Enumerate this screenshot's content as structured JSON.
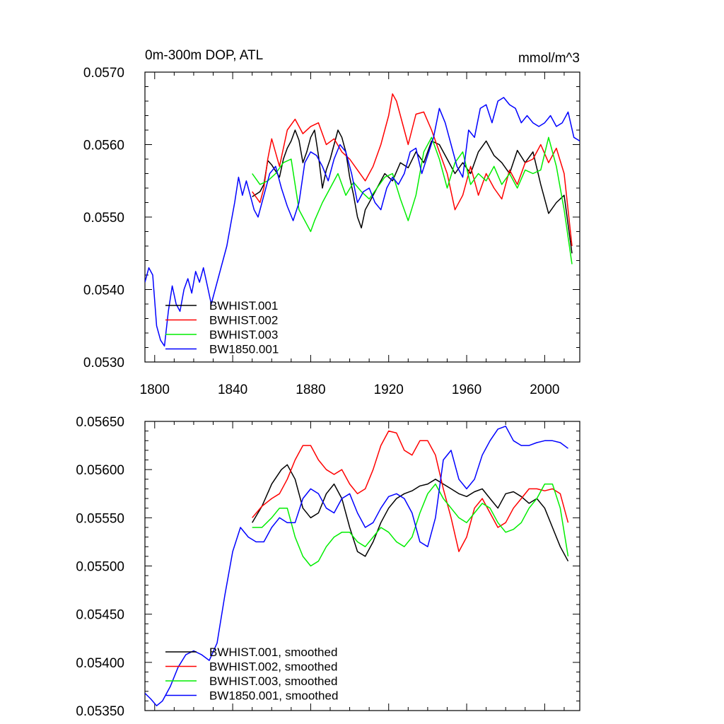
{
  "figure": {
    "title_left": "0m-300m DOP, ATL",
    "title_right": "mmol/m^3"
  },
  "chart_data": [
    {
      "type": "line",
      "title": "0m-300m DOP, ATL",
      "units": "mmol/m^3",
      "xlabel": "",
      "ylabel": "",
      "xlim": [
        1795,
        2018
      ],
      "ylim": [
        0.053,
        0.057
      ],
      "xticks": [
        1800,
        1840,
        1880,
        1920,
        1960,
        2000
      ],
      "xtick_labels": [
        "1800",
        "1840",
        "1880",
        "1920",
        "1960",
        "2000"
      ],
      "yticks": [
        0.053,
        0.054,
        0.055,
        0.056,
        0.057
      ],
      "ytick_labels": [
        "0.0530",
        "0.0540",
        "0.0550",
        "0.0560",
        "0.0570"
      ],
      "legend_position": "bottom-left",
      "series": [
        {
          "name": "BWHIST.001",
          "color": "#000000",
          "x": [
            1850,
            1854,
            1856,
            1858,
            1860,
            1864,
            1866,
            1868,
            1870,
            1872,
            1874,
            1876,
            1878,
            1880,
            1882,
            1884,
            1886,
            1888,
            1890,
            1892,
            1894,
            1896,
            1898,
            1900,
            1902,
            1904,
            1906,
            1908,
            1910,
            1914,
            1918,
            1922,
            1926,
            1930,
            1934,
            1938,
            1942,
            1946,
            1950,
            1954,
            1958,
            1962,
            1966,
            1970,
            1974,
            1978,
            1982,
            1986,
            1990,
            1994,
            1998,
            2002,
            2006,
            2010,
            2014
          ],
          "y": [
            0.05528,
            0.05535,
            0.05545,
            0.05578,
            0.05572,
            0.05555,
            0.0558,
            0.05595,
            0.05605,
            0.0562,
            0.05606,
            0.05575,
            0.0559,
            0.0561,
            0.0562,
            0.05585,
            0.0554,
            0.05565,
            0.0558,
            0.056,
            0.0562,
            0.0561,
            0.0559,
            0.05555,
            0.0553,
            0.055,
            0.05485,
            0.0551,
            0.0552,
            0.0554,
            0.0556,
            0.0555,
            0.05575,
            0.05568,
            0.0559,
            0.05575,
            0.05605,
            0.056,
            0.0558,
            0.0556,
            0.05575,
            0.0556,
            0.0559,
            0.05605,
            0.05585,
            0.05575,
            0.0556,
            0.05592,
            0.05575,
            0.0559,
            0.05545,
            0.05505,
            0.0552,
            0.0553,
            0.0545
          ]
        },
        {
          "name": "BWHIST.002",
          "color": "#ff0000",
          "x": [
            1850,
            1854,
            1856,
            1858,
            1860,
            1864,
            1868,
            1872,
            1876,
            1880,
            1884,
            1888,
            1892,
            1896,
            1900,
            1904,
            1908,
            1912,
            1916,
            1920,
            1922,
            1924,
            1926,
            1930,
            1934,
            1938,
            1942,
            1946,
            1950,
            1954,
            1958,
            1962,
            1966,
            1970,
            1974,
            1978,
            1982,
            1986,
            1990,
            1994,
            1998,
            2002,
            2006,
            2010,
            2014
          ],
          "y": [
            0.05535,
            0.0552,
            0.0554,
            0.0558,
            0.05608,
            0.0557,
            0.0562,
            0.05635,
            0.05615,
            0.05625,
            0.0563,
            0.056,
            0.05608,
            0.0559,
            0.0558,
            0.05565,
            0.0555,
            0.0557,
            0.056,
            0.0564,
            0.0567,
            0.0566,
            0.0564,
            0.056,
            0.05642,
            0.05645,
            0.0562,
            0.0559,
            0.0556,
            0.0551,
            0.0553,
            0.0557,
            0.0553,
            0.0556,
            0.0554,
            0.05525,
            0.05565,
            0.05545,
            0.05575,
            0.0558,
            0.056,
            0.05575,
            0.05595,
            0.0556,
            0.0546
          ]
        },
        {
          "name": "BWHIST.003",
          "color": "#00ee00",
          "x": [
            1850,
            1854,
            1858,
            1862,
            1866,
            1870,
            1874,
            1876,
            1878,
            1880,
            1882,
            1886,
            1890,
            1894,
            1898,
            1902,
            1906,
            1910,
            1914,
            1918,
            1922,
            1926,
            1930,
            1934,
            1938,
            1942,
            1946,
            1950,
            1954,
            1958,
            1962,
            1966,
            1970,
            1974,
            1978,
            1982,
            1986,
            1990,
            1994,
            1998,
            2002,
            2006,
            2010,
            2014
          ],
          "y": [
            0.0556,
            0.05545,
            0.0555,
            0.0556,
            0.05575,
            0.0558,
            0.0551,
            0.055,
            0.0549,
            0.0548,
            0.05495,
            0.0552,
            0.0554,
            0.0556,
            0.0553,
            0.05548,
            0.05535,
            0.05525,
            0.0554,
            0.05555,
            0.0556,
            0.05525,
            0.05495,
            0.0553,
            0.0559,
            0.0561,
            0.0558,
            0.0554,
            0.05575,
            0.0559,
            0.05545,
            0.0556,
            0.0555,
            0.0557,
            0.05545,
            0.0556,
            0.0554,
            0.05565,
            0.0556,
            0.05565,
            0.0561,
            0.0557,
            0.0551,
            0.05435
          ]
        },
        {
          "name": "BW1850.001",
          "color": "#0000ff",
          "x": [
            1795,
            1797,
            1799,
            1801,
            1803,
            1805,
            1807,
            1809,
            1811,
            1813,
            1815,
            1817,
            1819,
            1821,
            1823,
            1825,
            1827,
            1829,
            1831,
            1833,
            1835,
            1837,
            1839,
            1841,
            1843,
            1845,
            1847,
            1849,
            1851,
            1853,
            1855,
            1857,
            1859,
            1862,
            1865,
            1868,
            1871,
            1874,
            1877,
            1880,
            1883,
            1886,
            1889,
            1892,
            1895,
            1898,
            1901,
            1904,
            1907,
            1910,
            1913,
            1916,
            1919,
            1922,
            1925,
            1928,
            1931,
            1934,
            1937,
            1940,
            1943,
            1946,
            1949,
            1952,
            1955,
            1958,
            1961,
            1964,
            1967,
            1970,
            1973,
            1976,
            1979,
            1982,
            1985,
            1988,
            1991,
            1994,
            1997,
            2000,
            2003,
            2006,
            2009,
            2012,
            2015,
            2018
          ],
          "y": [
            0.0541,
            0.0543,
            0.0542,
            0.0535,
            0.0533,
            0.05322,
            0.0537,
            0.05405,
            0.0538,
            0.0537,
            0.054,
            0.05415,
            0.05395,
            0.05425,
            0.0541,
            0.0543,
            0.05405,
            0.0538,
            0.054,
            0.0542,
            0.0544,
            0.0546,
            0.0549,
            0.0552,
            0.05555,
            0.0553,
            0.0555,
            0.0553,
            0.0551,
            0.055,
            0.0552,
            0.0554,
            0.0556,
            0.0557,
            0.0554,
            0.05515,
            0.05495,
            0.0552,
            0.05575,
            0.0559,
            0.05585,
            0.0557,
            0.0555,
            0.0558,
            0.056,
            0.0559,
            0.0556,
            0.0552,
            0.05535,
            0.0554,
            0.0552,
            0.0551,
            0.0554,
            0.05555,
            0.05545,
            0.0556,
            0.0559,
            0.05595,
            0.0556,
            0.05585,
            0.0561,
            0.0565,
            0.0563,
            0.056,
            0.0557,
            0.05555,
            0.0562,
            0.0561,
            0.0565,
            0.05655,
            0.0563,
            0.0566,
            0.05665,
            0.05655,
            0.0565,
            0.0563,
            0.0564,
            0.0563,
            0.05625,
            0.0563,
            0.0564,
            0.05625,
            0.0563,
            0.05645,
            0.0561,
            0.05605
          ]
        }
      ]
    },
    {
      "type": "line",
      "title": "",
      "xlabel": "",
      "ylabel": "",
      "xlim": [
        1795,
        2018
      ],
      "ylim": [
        0.0535,
        0.0565
      ],
      "xticks": [
        1800,
        1840,
        1880,
        1920,
        1960,
        2000
      ],
      "yticks": [
        0.0535,
        0.054,
        0.0545,
        0.055,
        0.0555,
        0.056,
        0.0565
      ],
      "ytick_labels": [
        "0.05350",
        "0.05400",
        "0.05450",
        "0.05500",
        "0.05550",
        "0.05600",
        "0.05650"
      ],
      "legend_position": "bottom-left",
      "series": [
        {
          "name": "BWHIST.001, smoothed",
          "color": "#000000",
          "x": [
            1850,
            1855,
            1860,
            1865,
            1868,
            1872,
            1876,
            1880,
            1884,
            1888,
            1892,
            1896,
            1900,
            1904,
            1908,
            1912,
            1916,
            1920,
            1924,
            1928,
            1932,
            1936,
            1940,
            1944,
            1948,
            1952,
            1956,
            1960,
            1964,
            1968,
            1972,
            1976,
            1980,
            1984,
            1988,
            1992,
            1996,
            2000,
            2004,
            2008,
            2012
          ],
          "y": [
            0.05545,
            0.05562,
            0.05585,
            0.056,
            0.05605,
            0.0559,
            0.0556,
            0.0555,
            0.05555,
            0.05575,
            0.05585,
            0.0557,
            0.0554,
            0.05515,
            0.0551,
            0.05525,
            0.05545,
            0.0556,
            0.0557,
            0.05575,
            0.05578,
            0.05583,
            0.05585,
            0.0559,
            0.05585,
            0.0558,
            0.05575,
            0.05572,
            0.05577,
            0.0558,
            0.0557,
            0.0556,
            0.05575,
            0.05577,
            0.05572,
            0.05565,
            0.0557,
            0.0556,
            0.0554,
            0.0552,
            0.05505
          ]
        },
        {
          "name": "BWHIST.002, smoothed",
          "color": "#ff0000",
          "x": [
            1850,
            1855,
            1860,
            1864,
            1868,
            1872,
            1876,
            1880,
            1884,
            1888,
            1892,
            1896,
            1900,
            1904,
            1908,
            1912,
            1916,
            1920,
            1924,
            1928,
            1932,
            1936,
            1940,
            1944,
            1948,
            1952,
            1956,
            1960,
            1964,
            1968,
            1972,
            1976,
            1980,
            1984,
            1988,
            1992,
            1996,
            2000,
            2004,
            2008,
            2012
          ],
          "y": [
            0.0555,
            0.05562,
            0.0557,
            0.05575,
            0.0559,
            0.0561,
            0.05625,
            0.05625,
            0.0561,
            0.056,
            0.05595,
            0.056,
            0.05585,
            0.05575,
            0.0558,
            0.056,
            0.05625,
            0.0564,
            0.05638,
            0.0562,
            0.05615,
            0.0563,
            0.0563,
            0.05615,
            0.0558,
            0.0555,
            0.05515,
            0.0553,
            0.0556,
            0.0557,
            0.05555,
            0.0554,
            0.05545,
            0.0556,
            0.0557,
            0.0558,
            0.0558,
            0.05578,
            0.0558,
            0.05575,
            0.05545
          ]
        },
        {
          "name": "BWHIST.003, smoothed",
          "color": "#00ee00",
          "x": [
            1850,
            1855,
            1860,
            1864,
            1868,
            1872,
            1876,
            1880,
            1884,
            1888,
            1892,
            1896,
            1900,
            1904,
            1908,
            1912,
            1916,
            1920,
            1924,
            1928,
            1932,
            1936,
            1940,
            1944,
            1948,
            1952,
            1956,
            1960,
            1964,
            1968,
            1972,
            1976,
            1980,
            1984,
            1988,
            1992,
            1996,
            2000,
            2004,
            2008,
            2012
          ],
          "y": [
            0.0554,
            0.0554,
            0.0555,
            0.0556,
            0.0556,
            0.0553,
            0.0551,
            0.055,
            0.05505,
            0.0552,
            0.0553,
            0.05535,
            0.05535,
            0.05525,
            0.0552,
            0.0553,
            0.0554,
            0.05535,
            0.05525,
            0.0552,
            0.0553,
            0.05555,
            0.05575,
            0.05585,
            0.0557,
            0.0556,
            0.0555,
            0.05545,
            0.05555,
            0.05565,
            0.0556,
            0.05545,
            0.05535,
            0.05538,
            0.05545,
            0.0556,
            0.0557,
            0.05585,
            0.05585,
            0.0556,
            0.0551
          ]
        },
        {
          "name": "BW1850.001, smoothed",
          "color": "#0000ff",
          "x": [
            1795,
            1798,
            1801,
            1804,
            1808,
            1812,
            1816,
            1820,
            1824,
            1828,
            1832,
            1836,
            1840,
            1844,
            1848,
            1852,
            1856,
            1860,
            1864,
            1868,
            1872,
            1876,
            1880,
            1884,
            1888,
            1892,
            1896,
            1900,
            1904,
            1908,
            1912,
            1916,
            1920,
            1924,
            1928,
            1932,
            1936,
            1940,
            1944,
            1948,
            1952,
            1956,
            1960,
            1964,
            1968,
            1972,
            1976,
            1980,
            1984,
            1988,
            1992,
            1996,
            2000,
            2004,
            2008,
            2012
          ],
          "y": [
            0.05368,
            0.05362,
            0.05355,
            0.0536,
            0.05375,
            0.05395,
            0.05408,
            0.05412,
            0.05408,
            0.05402,
            0.0542,
            0.0547,
            0.05515,
            0.0554,
            0.0553,
            0.05525,
            0.05525,
            0.0554,
            0.0555,
            0.05545,
            0.05545,
            0.0557,
            0.0558,
            0.05575,
            0.0556,
            0.05555,
            0.0557,
            0.05575,
            0.05555,
            0.0554,
            0.05545,
            0.0556,
            0.05572,
            0.05575,
            0.0557,
            0.05555,
            0.05525,
            0.0552,
            0.0555,
            0.0561,
            0.0562,
            0.0559,
            0.0558,
            0.0559,
            0.05615,
            0.0563,
            0.05642,
            0.05645,
            0.0563,
            0.05625,
            0.05625,
            0.05628,
            0.0563,
            0.0563,
            0.05628,
            0.05622
          ]
        }
      ]
    }
  ]
}
